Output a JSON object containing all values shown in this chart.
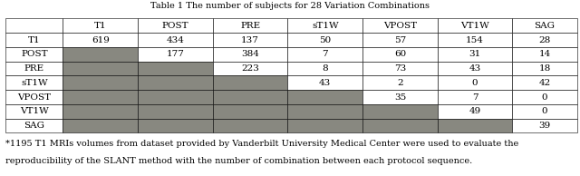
{
  "title": "Table 1 The number of subjects for 28 Variation Combinations",
  "col_headers": [
    "",
    "T1",
    "POST",
    "PRE",
    "sT1W",
    "VPOST",
    "VT1W",
    "SAG"
  ],
  "row_headers": [
    "T1",
    "POST",
    "PRE",
    "sT1W",
    "VPOST",
    "VT1W",
    "SAG"
  ],
  "cell_data": [
    [
      "619",
      "434",
      "137",
      "50",
      "57",
      "154",
      "28"
    ],
    [
      null,
      "177",
      "384",
      "7",
      "60",
      "31",
      "14"
    ],
    [
      null,
      null,
      "223",
      "8",
      "73",
      "43",
      "18"
    ],
    [
      null,
      null,
      null,
      "43",
      "2",
      "0",
      "42"
    ],
    [
      null,
      null,
      null,
      null,
      "35",
      "7",
      "0"
    ],
    [
      null,
      null,
      null,
      null,
      null,
      "49",
      "0"
    ],
    [
      null,
      null,
      null,
      null,
      null,
      null,
      "39"
    ]
  ],
  "gray_color": "#888880",
  "white_color": "#ffffff",
  "footer_text_line1": "*1195 T1 MRIs volumes from dataset provided by Vanderbilt University Medical Center were used to evaluate the",
  "footer_text_line2": "reproducibility of the SLANT method with the number of combination between each protocol sequence.",
  "font_size": 7.5,
  "title_font_size": 7.0,
  "footer_font_size": 7.0
}
